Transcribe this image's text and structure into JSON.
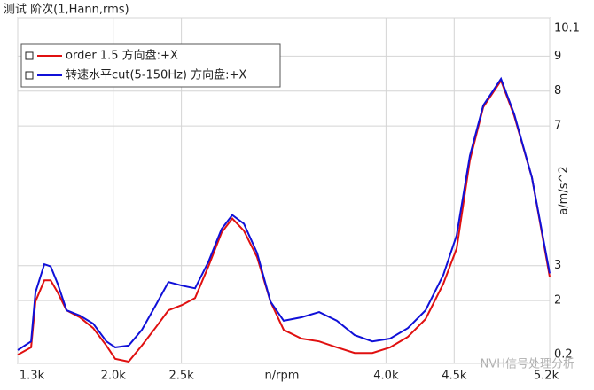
{
  "chart_data": {
    "type": "line",
    "title": "测试  阶次(1,Hann,rms)",
    "x_label": "n/rpm",
    "y_label": "a/m/s^2",
    "watermark": "NVH信号处理分析",
    "x": [
      1300,
      1398,
      1430,
      1495,
      1541,
      1593,
      1658,
      1755,
      1853,
      1950,
      2015,
      2113,
      2210,
      2308,
      2405,
      2503,
      2600,
      2698,
      2795,
      2873,
      2958,
      3055,
      3153,
      3250,
      3380,
      3510,
      3640,
      3770,
      3900,
      4030,
      4160,
      4290,
      4420,
      4518,
      4615,
      4713,
      4843,
      4940,
      5070,
      5200
    ],
    "series": [
      {
        "name": "order 1.5 方向盘:+X",
        "color": "#e01010",
        "values": [
          0.45,
          0.66,
          1.97,
          2.58,
          2.58,
          2.23,
          1.72,
          1.52,
          1.21,
          0.71,
          0.33,
          0.25,
          0.71,
          1.21,
          1.72,
          1.87,
          2.07,
          2.98,
          3.95,
          4.35,
          4.0,
          3.24,
          1.97,
          1.16,
          0.91,
          0.83,
          0.66,
          0.5,
          0.5,
          0.66,
          0.96,
          1.47,
          2.48,
          3.49,
          6.02,
          7.54,
          8.3,
          7.29,
          5.52,
          2.68
        ]
      },
      {
        "name": "转速水平cut(5-150Hz) 方向盘:+X",
        "color": "#1010d8",
        "values": [
          0.58,
          0.83,
          2.23,
          3.04,
          2.98,
          2.48,
          1.72,
          1.57,
          1.34,
          0.83,
          0.66,
          0.71,
          1.16,
          1.84,
          2.53,
          2.43,
          2.35,
          3.11,
          4.05,
          4.45,
          4.2,
          3.36,
          1.97,
          1.42,
          1.52,
          1.67,
          1.42,
          1.01,
          0.83,
          0.91,
          1.21,
          1.72,
          2.73,
          3.87,
          6.15,
          7.59,
          8.35,
          7.34,
          5.52,
          2.78
        ]
      }
    ],
    "xlim": [
      1300,
      5200
    ],
    "xticks": [
      {
        "value": 1300,
        "label": "1.3k"
      },
      {
        "value": 2000,
        "label": "2.0k"
      },
      {
        "value": 2500,
        "label": "2.5k"
      },
      {
        "value": 4000,
        "label": "4.0k"
      },
      {
        "value": 4500,
        "label": "4.5k"
      },
      {
        "value": 5200,
        "label": "5.2k"
      }
    ],
    "ylim": [
      0.2,
      10.1
    ],
    "yticks": [
      0.2,
      2,
      3,
      7,
      8,
      9,
      10.1
    ],
    "grid": true,
    "legend": "top-left"
  }
}
